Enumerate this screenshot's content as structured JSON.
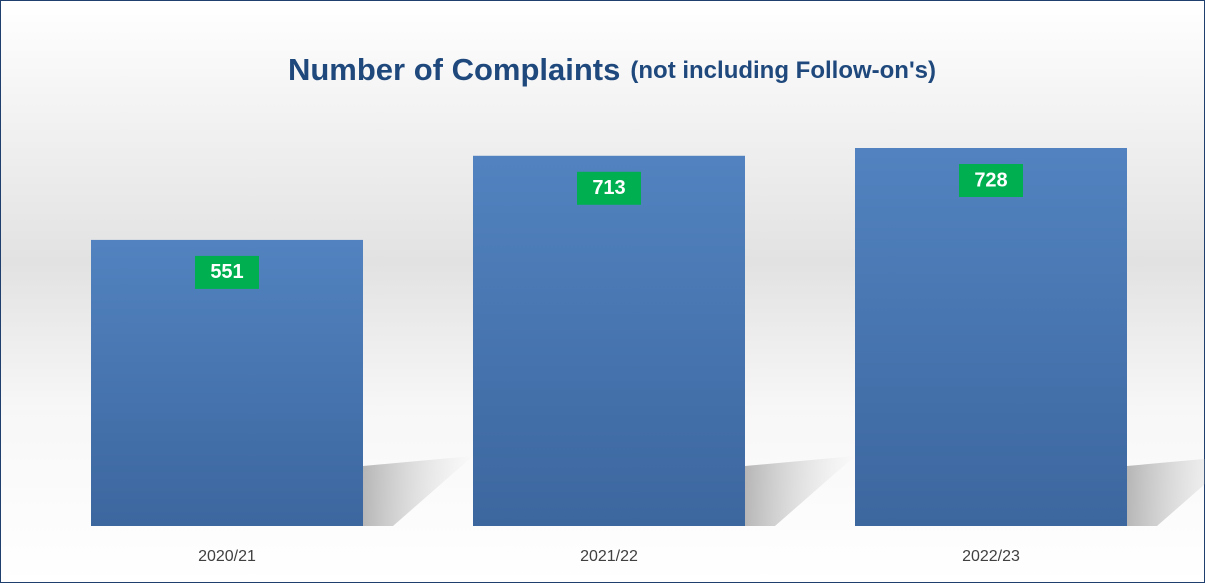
{
  "chart_data": {
    "type": "bar",
    "title": "Number of Complaints",
    "subtitle": "(not including Follow-on's)",
    "categories": [
      "2020/21",
      "2021/22",
      "2022/23"
    ],
    "values": [
      551,
      713,
      728
    ],
    "color": "#4f81bd",
    "label_color": "#00b050"
  }
}
